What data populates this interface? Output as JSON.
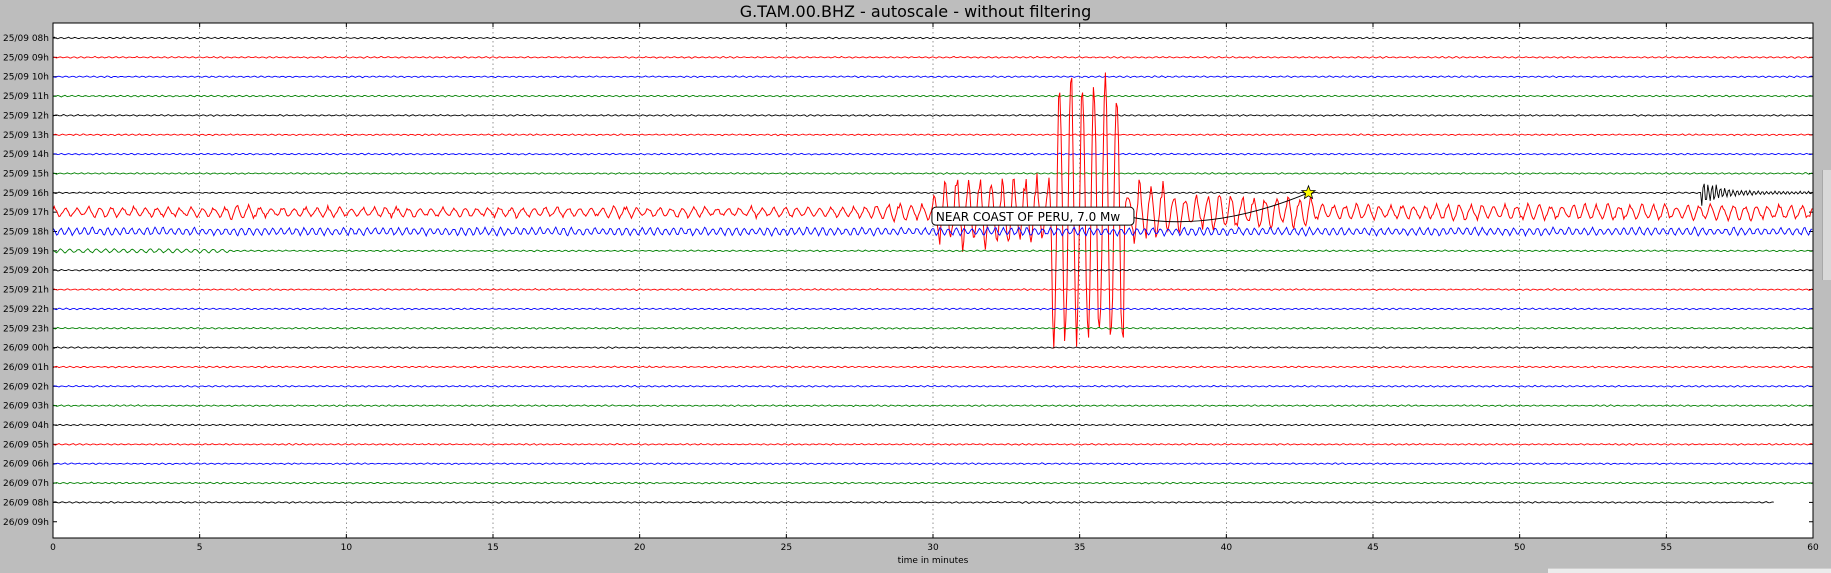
{
  "title": "G.TAM.00.BHZ - autoscale - without filtering",
  "chart_data": {
    "type": "line",
    "title": "G.TAM.00.BHZ - autoscale - without filtering",
    "xlabel": "time in minutes",
    "ylabel": "",
    "xlim": [
      0,
      60
    ],
    "xticks": [
      0,
      5,
      10,
      15,
      20,
      25,
      30,
      35,
      40,
      45,
      50,
      55,
      60
    ],
    "grid": true,
    "row_labels": [
      "25/09 08h",
      "25/09 09h",
      "25/09 10h",
      "25/09 11h",
      "25/09 12h",
      "25/09 13h",
      "25/09 14h",
      "25/09 15h",
      "25/09 16h",
      "25/09 17h",
      "25/09 18h",
      "25/09 19h",
      "25/09 20h",
      "25/09 21h",
      "25/09 22h",
      "25/09 23h",
      "26/09 00h",
      "26/09 01h",
      "26/09 02h",
      "26/09 03h",
      "26/09 04h",
      "26/09 05h",
      "26/09 06h",
      "26/09 07h",
      "26/09 08h",
      "26/09 09h"
    ],
    "trace_colors": [
      "#000000",
      "#ff0000",
      "#0000ff",
      "#008000"
    ],
    "event": {
      "label": "NEAR COAST OF PERU, 7.0 Mw",
      "row": "25/09 16h",
      "time_minutes": 42.8,
      "marker": "star-icon",
      "marker_color": "#ffff00"
    },
    "last_trace_end_minutes": 58.7
  }
}
